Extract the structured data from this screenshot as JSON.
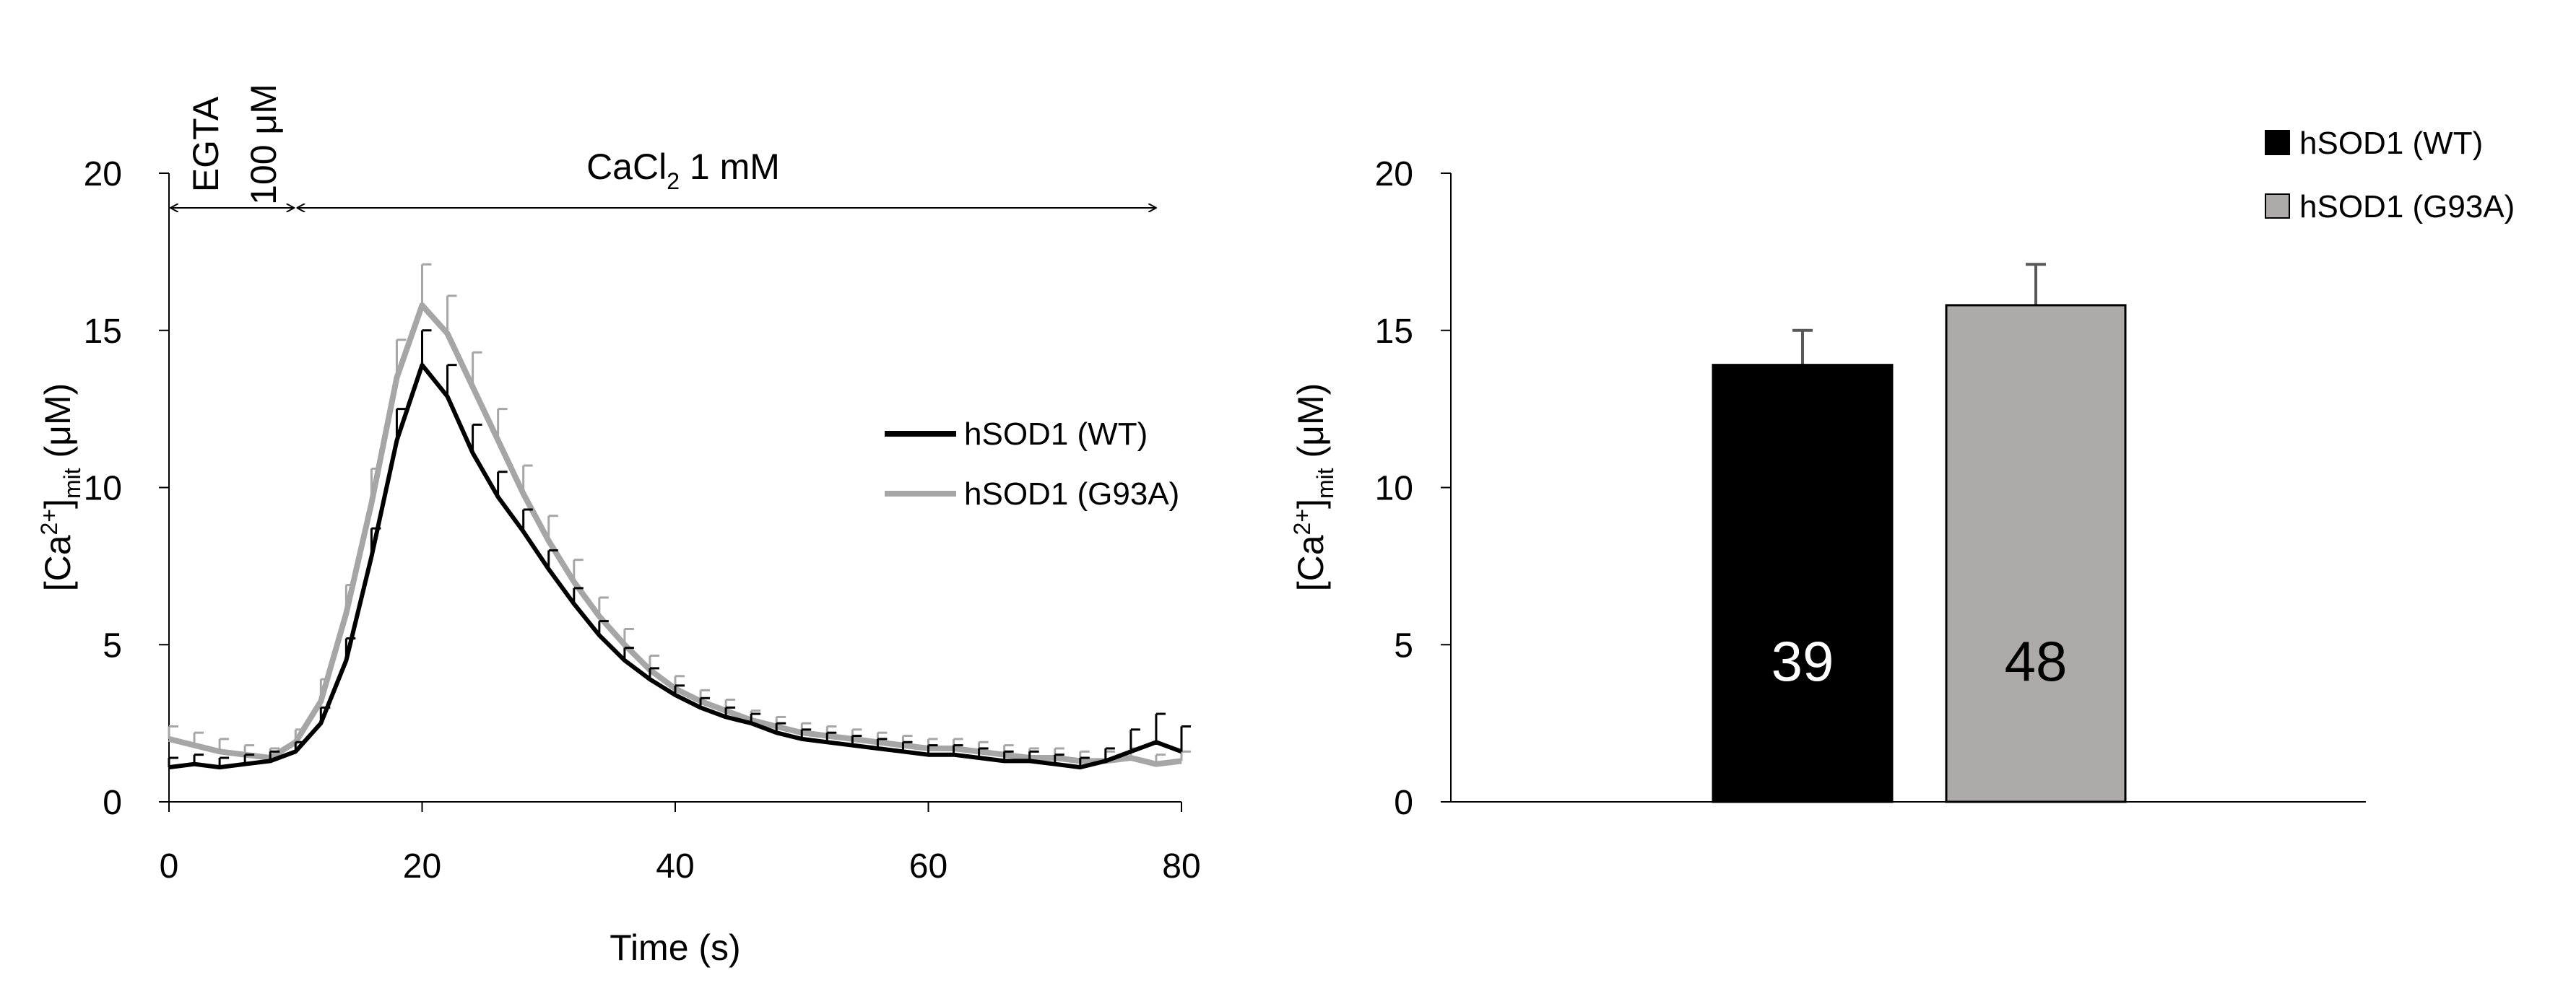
{
  "chart_data": [
    {
      "type": "line",
      "xlabel": "Time (s)",
      "ylabel_main": "[Ca",
      "ylabel_sup": "2+",
      "ylabel_close": "]",
      "ylabel_sub": "mit",
      "ylabel_unit": " (μM)",
      "xlim": [
        0,
        80
      ],
      "ylim": [
        0,
        20
      ],
      "xticks": [
        0,
        20,
        40,
        60,
        80
      ],
      "yticks": [
        0,
        5,
        10,
        15,
        20
      ],
      "grid": false,
      "legend_position": "right",
      "annotations": {
        "egta_line1": "EGTA",
        "egta_line2": "100 μM",
        "egta_range": [
          0,
          10
        ],
        "cacl_main": "CaCl",
        "cacl_sub": "2",
        "cacl_rest": " 1 mM",
        "cacl_range": [
          10,
          78
        ]
      },
      "series": [
        {
          "name": "hSOD1 (WT)",
          "color": "#000000",
          "x": [
            0,
            2,
            4,
            6,
            8,
            10,
            12,
            14,
            16,
            18,
            20,
            22,
            24,
            26,
            28,
            30,
            32,
            34,
            36,
            38,
            40,
            42,
            44,
            46,
            48,
            50,
            52,
            54,
            56,
            58,
            60,
            62,
            64,
            66,
            68,
            70,
            72,
            74,
            76,
            78,
            80
          ],
          "y": [
            1.1,
            1.2,
            1.1,
            1.2,
            1.3,
            1.6,
            2.5,
            4.5,
            7.8,
            11.5,
            13.9,
            12.9,
            11.1,
            9.7,
            8.6,
            7.4,
            6.3,
            5.3,
            4.5,
            3.9,
            3.4,
            3.0,
            2.7,
            2.5,
            2.2,
            2.0,
            1.9,
            1.8,
            1.7,
            1.6,
            1.5,
            1.5,
            1.4,
            1.3,
            1.3,
            1.2,
            1.1,
            1.3,
            1.6,
            1.9,
            1.6
          ],
          "err": [
            0.3,
            0.3,
            0.3,
            0.3,
            0.3,
            0.3,
            0.5,
            0.7,
            0.9,
            1.0,
            1.1,
            1.0,
            0.9,
            0.8,
            0.7,
            0.6,
            0.5,
            0.45,
            0.4,
            0.35,
            0.3,
            0.3,
            0.3,
            0.3,
            0.3,
            0.3,
            0.3,
            0.3,
            0.3,
            0.3,
            0.3,
            0.3,
            0.3,
            0.3,
            0.3,
            0.3,
            0.3,
            0.4,
            0.7,
            0.9,
            0.8
          ]
        },
        {
          "name": "hSOD1 (G93A)",
          "color": "#a6a6a6",
          "x": [
            0,
            2,
            4,
            6,
            8,
            10,
            12,
            14,
            16,
            18,
            20,
            22,
            24,
            26,
            28,
            30,
            32,
            34,
            36,
            38,
            40,
            42,
            44,
            46,
            48,
            50,
            52,
            54,
            56,
            58,
            60,
            62,
            64,
            66,
            68,
            70,
            72,
            74,
            76,
            78,
            80
          ],
          "y": [
            2.0,
            1.8,
            1.6,
            1.5,
            1.4,
            1.9,
            3.2,
            6.0,
            9.5,
            13.5,
            15.8,
            14.9,
            13.2,
            11.5,
            9.8,
            8.3,
            7.0,
            5.9,
            5.0,
            4.2,
            3.6,
            3.2,
            2.9,
            2.6,
            2.4,
            2.2,
            2.1,
            2.0,
            1.9,
            1.8,
            1.7,
            1.7,
            1.6,
            1.5,
            1.4,
            1.4,
            1.3,
            1.3,
            1.4,
            1.2,
            1.3
          ],
          "err": [
            0.4,
            0.4,
            0.4,
            0.3,
            0.3,
            0.4,
            0.7,
            0.9,
            1.1,
            1.2,
            1.3,
            1.2,
            1.1,
            1.0,
            0.9,
            0.8,
            0.7,
            0.6,
            0.5,
            0.45,
            0.4,
            0.35,
            0.35,
            0.3,
            0.3,
            0.3,
            0.3,
            0.3,
            0.3,
            0.3,
            0.3,
            0.3,
            0.3,
            0.3,
            0.3,
            0.3,
            0.3,
            0.3,
            0.3,
            0.3,
            0.3
          ]
        }
      ]
    },
    {
      "type": "bar",
      "ylabel_main": "[Ca",
      "ylabel_sup": "2+",
      "ylabel_close": "]",
      "ylabel_sub": "mit",
      "ylabel_unit": " (μM)",
      "ylim": [
        0,
        20
      ],
      "yticks": [
        0,
        5,
        10,
        15,
        20
      ],
      "grid": false,
      "legend_position": "top-right",
      "series": [
        {
          "name": "hSOD1 (WT)",
          "value": 13.9,
          "err": 1.1,
          "n_label": "39",
          "color": "#000000",
          "label_color": "#ffffff"
        },
        {
          "name": "hSOD1 (G93A)",
          "value": 15.8,
          "err": 1.3,
          "n_label": "48",
          "color": "#aeaaaa",
          "label_color": "#000000"
        }
      ]
    }
  ]
}
